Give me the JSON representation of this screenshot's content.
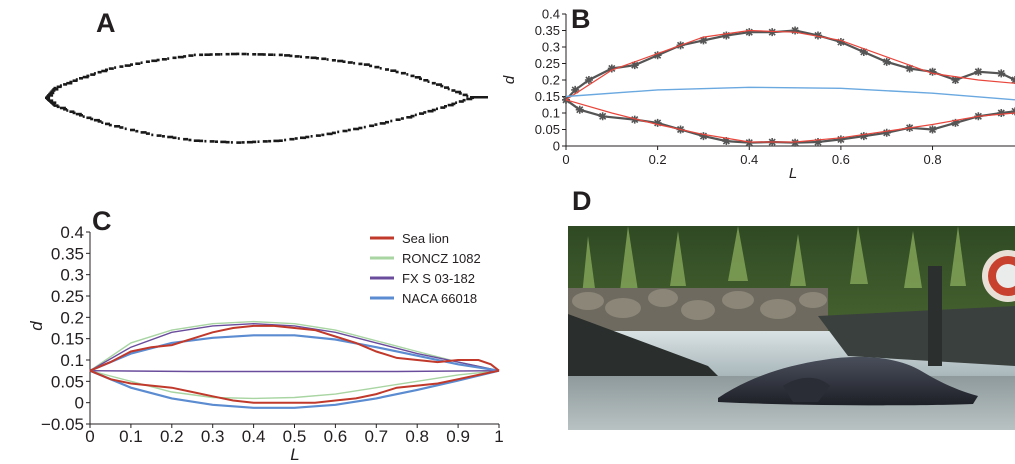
{
  "panels": {
    "a": {
      "letter": "A"
    },
    "b": {
      "letter": "B"
    },
    "c": {
      "letter": "C"
    },
    "d": {
      "letter": "D"
    }
  },
  "chart_data": [
    {
      "panel": "A",
      "type": "scatter",
      "xlabel": "",
      "ylabel": "",
      "series": [
        {
          "values": [
            [
              0.0,
              0.0
            ],
            [
              0.02,
              0.05
            ],
            [
              0.08,
              0.1
            ],
            [
              0.15,
              0.15
            ],
            [
              0.25,
              0.19
            ],
            [
              0.35,
              0.22
            ],
            [
              0.45,
              0.225
            ],
            [
              0.55,
              0.22
            ],
            [
              0.65,
              0.2
            ],
            [
              0.75,
              0.17
            ],
            [
              0.85,
              0.12
            ],
            [
              0.93,
              0.06
            ],
            [
              1.0,
              0.0
            ],
            [
              0.93,
              -0.05
            ],
            [
              0.85,
              -0.1
            ],
            [
              0.75,
              -0.15
            ],
            [
              0.65,
              -0.19
            ],
            [
              0.55,
              -0.22
            ],
            [
              0.45,
              -0.23
            ],
            [
              0.35,
              -0.22
            ],
            [
              0.25,
              -0.19
            ],
            [
              0.15,
              -0.14
            ],
            [
              0.08,
              -0.09
            ],
            [
              0.02,
              -0.04
            ]
          ]
        }
      ]
    },
    {
      "panel": "B",
      "type": "line",
      "xlabel": "L",
      "ylabel": "d",
      "xlim": [
        0,
        0.98
      ],
      "ylim": [
        0,
        0.4
      ],
      "xticks": [
        "0",
        "0.2",
        "0.4",
        "0.6",
        "0.8"
      ],
      "yticks": [
        "0",
        "0.05",
        "0.1",
        "0.15",
        "0.2",
        "0.25",
        "0.3",
        "0.35",
        "0.4"
      ],
      "series": [
        {
          "values": [
            [
              0,
              0.14
            ],
            [
              0.02,
              0.17
            ],
            [
              0.05,
              0.2
            ],
            [
              0.1,
              0.235
            ],
            [
              0.15,
              0.245
            ],
            [
              0.2,
              0.275
            ],
            [
              0.25,
              0.305
            ],
            [
              0.3,
              0.32
            ],
            [
              0.35,
              0.335
            ],
            [
              0.4,
              0.345
            ],
            [
              0.45,
              0.345
            ],
            [
              0.5,
              0.35
            ],
            [
              0.55,
              0.335
            ],
            [
              0.6,
              0.315
            ],
            [
              0.65,
              0.285
            ],
            [
              0.7,
              0.255
            ],
            [
              0.75,
              0.235
            ],
            [
              0.8,
              0.225
            ],
            [
              0.85,
              0.2
            ],
            [
              0.9,
              0.225
            ],
            [
              0.95,
              0.22
            ],
            [
              0.98,
              0.2
            ]
          ]
        },
        {
          "values": [
            [
              0,
              0.14
            ],
            [
              0.03,
              0.11
            ],
            [
              0.08,
              0.09
            ],
            [
              0.15,
              0.08
            ],
            [
              0.2,
              0.07
            ],
            [
              0.25,
              0.05
            ],
            [
              0.3,
              0.03
            ],
            [
              0.35,
              0.015
            ],
            [
              0.4,
              0.01
            ],
            [
              0.45,
              0.012
            ],
            [
              0.5,
              0.01
            ],
            [
              0.55,
              0.012
            ],
            [
              0.6,
              0.02
            ],
            [
              0.65,
              0.03
            ],
            [
              0.7,
              0.04
            ],
            [
              0.75,
              0.055
            ],
            [
              0.8,
              0.05
            ],
            [
              0.85,
              0.07
            ],
            [
              0.9,
              0.09
            ],
            [
              0.95,
              0.1
            ],
            [
              0.98,
              0.105
            ]
          ]
        },
        {
          "values": [
            [
              0,
              0.14
            ],
            [
              0.1,
              0.23
            ],
            [
              0.2,
              0.28
            ],
            [
              0.3,
              0.33
            ],
            [
              0.4,
              0.35
            ],
            [
              0.5,
              0.345
            ],
            [
              0.6,
              0.32
            ],
            [
              0.7,
              0.27
            ],
            [
              0.8,
              0.22
            ],
            [
              0.9,
              0.2
            ],
            [
              0.98,
              0.19
            ]
          ]
        },
        {
          "values": [
            [
              0,
              0.14
            ],
            [
              0.1,
              0.1
            ],
            [
              0.2,
              0.065
            ],
            [
              0.3,
              0.035
            ],
            [
              0.4,
              0.012
            ],
            [
              0.5,
              0.012
            ],
            [
              0.6,
              0.025
            ],
            [
              0.7,
              0.045
            ],
            [
              0.8,
              0.065
            ],
            [
              0.9,
              0.09
            ],
            [
              0.98,
              0.1
            ]
          ]
        },
        {
          "values": [
            [
              0,
              0.15
            ],
            [
              0.2,
              0.17
            ],
            [
              0.4,
              0.178
            ],
            [
              0.6,
              0.175
            ],
            [
              0.8,
              0.16
            ],
            [
              0.98,
              0.14
            ]
          ]
        }
      ]
    },
    {
      "panel": "C",
      "type": "line",
      "xlabel": "L",
      "ylabel": "d",
      "xlim": [
        0,
        1
      ],
      "ylim": [
        -0.05,
        0.4
      ],
      "xticks": [
        "0",
        "0.1",
        "0.2",
        "0.3",
        "0.4",
        "0.5",
        "0.6",
        "0.7",
        "0.8",
        "0.9",
        "1"
      ],
      "yticks": [
        "−0.05",
        "0",
        "0.05",
        "0.1",
        "0.15",
        "0.2",
        "0.25",
        "0.3",
        "0.35",
        "0.4"
      ],
      "legend": "top-right",
      "series": [
        {
          "name": "Sea lion",
          "color": "#c0392b",
          "upper": [
            [
              0,
              0.075
            ],
            [
              0.05,
              0.095
            ],
            [
              0.1,
              0.12
            ],
            [
              0.15,
              0.13
            ],
            [
              0.2,
              0.135
            ],
            [
              0.25,
              0.15
            ],
            [
              0.3,
              0.165
            ],
            [
              0.35,
              0.175
            ],
            [
              0.4,
              0.18
            ],
            [
              0.45,
              0.18
            ],
            [
              0.5,
              0.175
            ],
            [
              0.55,
              0.17
            ],
            [
              0.6,
              0.155
            ],
            [
              0.65,
              0.14
            ],
            [
              0.7,
              0.12
            ],
            [
              0.75,
              0.105
            ],
            [
              0.8,
              0.1
            ],
            [
              0.85,
              0.095
            ],
            [
              0.9,
              0.1
            ],
            [
              0.95,
              0.1
            ],
            [
              0.98,
              0.09
            ],
            [
              1.0,
              0.075
            ]
          ],
          "lower": [
            [
              0,
              0.075
            ],
            [
              0.05,
              0.055
            ],
            [
              0.1,
              0.045
            ],
            [
              0.15,
              0.04
            ],
            [
              0.2,
              0.035
            ],
            [
              0.25,
              0.025
            ],
            [
              0.3,
              0.015
            ],
            [
              0.35,
              0.005
            ],
            [
              0.4,
              0.0
            ],
            [
              0.45,
              0.0
            ],
            [
              0.5,
              0.0
            ],
            [
              0.55,
              0.0
            ],
            [
              0.6,
              0.005
            ],
            [
              0.65,
              0.01
            ],
            [
              0.7,
              0.02
            ],
            [
              0.75,
              0.035
            ],
            [
              0.8,
              0.04
            ],
            [
              0.85,
              0.045
            ],
            [
              0.9,
              0.055
            ],
            [
              0.95,
              0.065
            ],
            [
              1.0,
              0.075
            ]
          ]
        },
        {
          "name": "RONCZ 1082",
          "color": "#a8d5a2",
          "upper": [
            [
              0,
              0.075
            ],
            [
              0.1,
              0.14
            ],
            [
              0.2,
              0.17
            ],
            [
              0.3,
              0.185
            ],
            [
              0.4,
              0.19
            ],
            [
              0.5,
              0.185
            ],
            [
              0.6,
              0.17
            ],
            [
              0.7,
              0.145
            ],
            [
              0.8,
              0.12
            ],
            [
              0.9,
              0.095
            ],
            [
              1.0,
              0.075
            ]
          ],
          "lower": [
            [
              0,
              0.075
            ],
            [
              0.1,
              0.05
            ],
            [
              0.2,
              0.025
            ],
            [
              0.3,
              0.012
            ],
            [
              0.4,
              0.01
            ],
            [
              0.5,
              0.012
            ],
            [
              0.6,
              0.02
            ],
            [
              0.7,
              0.035
            ],
            [
              0.8,
              0.05
            ],
            [
              0.9,
              0.065
            ],
            [
              1.0,
              0.075
            ]
          ]
        },
        {
          "name": "FX S 03-182",
          "color": "#6a4c9c",
          "upper": [
            [
              0,
              0.075
            ],
            [
              0.1,
              0.13
            ],
            [
              0.2,
              0.165
            ],
            [
              0.3,
              0.18
            ],
            [
              0.4,
              0.185
            ],
            [
              0.5,
              0.18
            ],
            [
              0.6,
              0.165
            ],
            [
              0.7,
              0.14
            ],
            [
              0.8,
              0.115
            ],
            [
              0.9,
              0.095
            ],
            [
              1.0,
              0.075
            ]
          ],
          "lower": [
            [
              0,
              0.075
            ],
            [
              0.25,
              0.073
            ],
            [
              0.5,
              0.073
            ],
            [
              0.75,
              0.073
            ],
            [
              1.0,
              0.075
            ]
          ]
        },
        {
          "name": "NACA 66018",
          "color": "#5b8bd0",
          "upper": [
            [
              0,
              0.075
            ],
            [
              0.1,
              0.115
            ],
            [
              0.2,
              0.14
            ],
            [
              0.3,
              0.152
            ],
            [
              0.4,
              0.158
            ],
            [
              0.5,
              0.158
            ],
            [
              0.6,
              0.148
            ],
            [
              0.7,
              0.13
            ],
            [
              0.8,
              0.11
            ],
            [
              0.9,
              0.09
            ],
            [
              1.0,
              0.075
            ]
          ],
          "lower": [
            [
              0,
              0.075
            ],
            [
              0.1,
              0.035
            ],
            [
              0.2,
              0.01
            ],
            [
              0.3,
              -0.005
            ],
            [
              0.4,
              -0.012
            ],
            [
              0.5,
              -0.012
            ],
            [
              0.6,
              -0.005
            ],
            [
              0.7,
              0.01
            ],
            [
              0.8,
              0.03
            ],
            [
              0.9,
              0.052
            ],
            [
              1.0,
              0.075
            ]
          ]
        }
      ]
    }
  ],
  "colors": {
    "axis": "#231f20",
    "red": "#e8463c",
    "blue": "#6aa8e0",
    "marker": "#555555"
  }
}
